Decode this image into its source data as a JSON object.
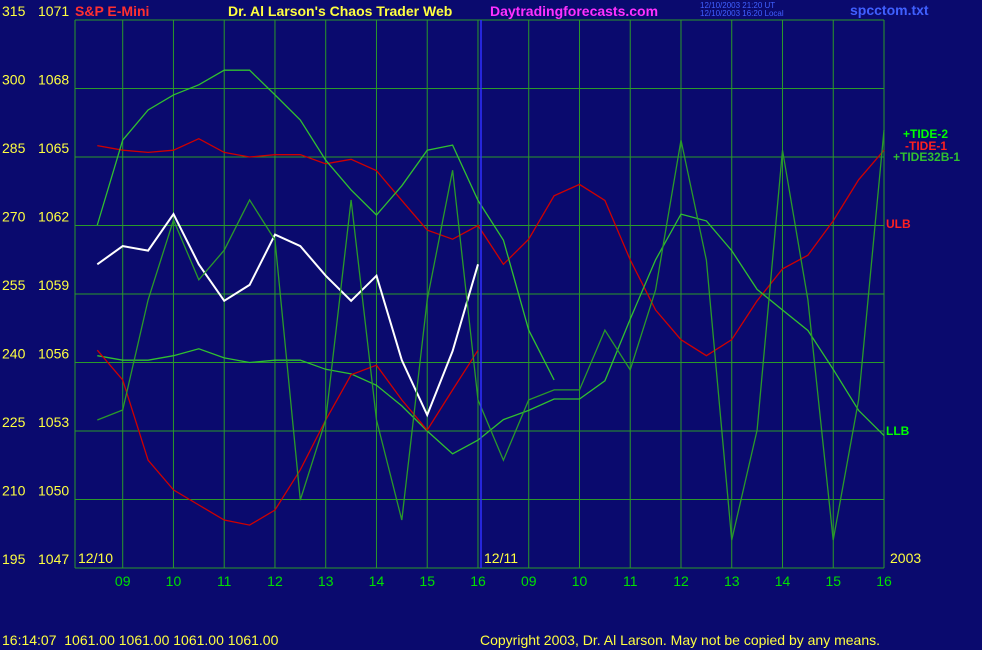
{
  "chart_data": {
    "type": "line",
    "title": "S&P E-Mini",
    "subtitle": "Dr. Al Larson's Chaos Trader Web",
    "site": "Daytradingforecasts.com",
    "timestamps": [
      "12/10/2003 21:20 UT",
      "12/10/2003 16:20 Local"
    ],
    "file": "spcctom.txt",
    "quote": "16:14:07  1061.00 1061.00 1061.00 1061.00",
    "copyright": "Copyright 2003, Dr. Al Larson. May not be copied by any means.",
    "date_labels": [
      "12/10",
      "12/11",
      "2003"
    ],
    "grid": true,
    "xlim": [
      0.06,
      16
    ],
    "xticks": [
      {
        "value": 1,
        "label": "09"
      },
      {
        "value": 2,
        "label": "10"
      },
      {
        "value": 3,
        "label": "11"
      },
      {
        "value": 4,
        "label": "12"
      },
      {
        "value": 5,
        "label": "13"
      },
      {
        "value": 6,
        "label": "14"
      },
      {
        "value": 7,
        "label": "15"
      },
      {
        "value": 8,
        "label": "16"
      },
      {
        "value": 9,
        "label": "09"
      },
      {
        "value": 10,
        "label": "10"
      },
      {
        "value": 11,
        "label": "11"
      },
      {
        "value": 12,
        "label": "12"
      },
      {
        "value": 13,
        "label": "13"
      },
      {
        "value": 14,
        "label": "14"
      },
      {
        "value": 15,
        "label": "15"
      },
      {
        "value": 16,
        "label": "16"
      }
    ],
    "ylim": [
      1047,
      1071
    ],
    "yticks": [
      1047,
      1050,
      1053,
      1056,
      1059,
      1062,
      1065,
      1068,
      1071
    ],
    "y2lim": [
      195,
      315
    ],
    "y2ticks": [
      195,
      210,
      225,
      240,
      255,
      270,
      285,
      300,
      315
    ],
    "x": [
      0.5,
      1,
      1.5,
      2,
      2.5,
      3,
      3.5,
      4,
      4.5,
      5,
      5.5,
      6,
      6.5,
      7,
      7.5,
      8,
      8.5,
      9,
      9.5,
      10,
      10.5,
      11,
      11.5,
      12,
      12.5,
      13,
      13.5,
      14,
      14.5,
      15,
      15.5,
      16
    ],
    "series": [
      {
        "color": "#ffffff",
        "values": [
          1060.3,
          1061.1,
          1060.9,
          1062.5,
          1060.3,
          1058.7,
          1059.4,
          1061.6,
          1061.1,
          1059.8,
          1058.7,
          1059.8,
          1056.1,
          1053.7,
          1056.5,
          1060.3,
          null,
          null,
          null,
          null,
          null,
          null,
          null,
          null,
          null,
          null,
          null,
          null,
          null,
          null,
          null,
          null
        ]
      },
      {
        "name": "ULB",
        "color": "#d00000",
        "values": [
          1065.5,
          1065.3,
          1065.2,
          1065.3,
          1065.8,
          1065.2,
          1065.0,
          1065.1,
          1065.1,
          1064.7,
          1064.9,
          1064.4,
          1063.1,
          1061.8,
          1061.4,
          1062.0,
          1060.3,
          1061.4,
          1063.3,
          1063.8,
          1063.1,
          1060.5,
          1058.3,
          1057.0,
          1056.3,
          1057.0,
          1058.7,
          1060.1,
          1060.7,
          1062.2,
          1064.0,
          1065.3
        ]
      },
      {
        "name": "LLB",
        "color": "#30c030",
        "values": [
          1056.3,
          1056.1,
          1056.1,
          1056.3,
          1056.6,
          1056.2,
          1056.0,
          1056.1,
          1056.1,
          1055.7,
          1055.5,
          1055.0,
          1054.1,
          1053.0,
          1052.0,
          1052.6,
          1053.5,
          1053.9,
          1054.4,
          1054.4,
          1055.2,
          1057.9,
          1060.5,
          1062.5,
          1062.2,
          1060.9,
          1059.2,
          1058.3,
          1057.4,
          1055.7,
          1053.9,
          1052.8
        ]
      },
      {
        "name": "+TIDE-2",
        "axis": "y2",
        "color": "#30c030",
        "values": [
          270.1,
          288.7,
          295.3,
          298.6,
          300.8,
          304.0,
          304.0,
          298.6,
          293.1,
          284.3,
          277.8,
          272.3,
          278.7,
          286.5,
          287.6,
          275.5,
          266.8,
          247.1,
          236.2,
          null,
          null,
          null,
          null,
          null,
          null,
          null,
          null,
          null,
          null,
          null,
          null,
          null
        ]
      },
      {
        "name": "-TIDE-1",
        "axis": "y2",
        "color": "#d00000",
        "values": [
          242.7,
          236.2,
          218.6,
          212.1,
          208.8,
          205.5,
          204.4,
          207.7,
          216.5,
          227.4,
          237.3,
          239.4,
          231.8,
          225.2,
          234.0,
          242.7,
          null,
          null,
          null,
          null,
          null,
          null,
          null,
          null,
          null,
          null,
          null,
          null,
          null,
          null,
          null,
          null
        ]
      },
      {
        "name": "+TIDE32B-1",
        "axis": "y2",
        "color": "#2a9a2a",
        "values": [
          227.4,
          229.6,
          253.7,
          271.2,
          258.1,
          264.6,
          275.6,
          266.8,
          209.9,
          227.4,
          275.6,
          227.4,
          205.5,
          253.7,
          282.1,
          231.8,
          218.6,
          231.8,
          234.0,
          234.0,
          247.1,
          238.4,
          255.9,
          288.7,
          262.4,
          201.1,
          225.2,
          286.5,
          253.7,
          201.1,
          231.8,
          290.9
        ]
      }
    ]
  }
}
